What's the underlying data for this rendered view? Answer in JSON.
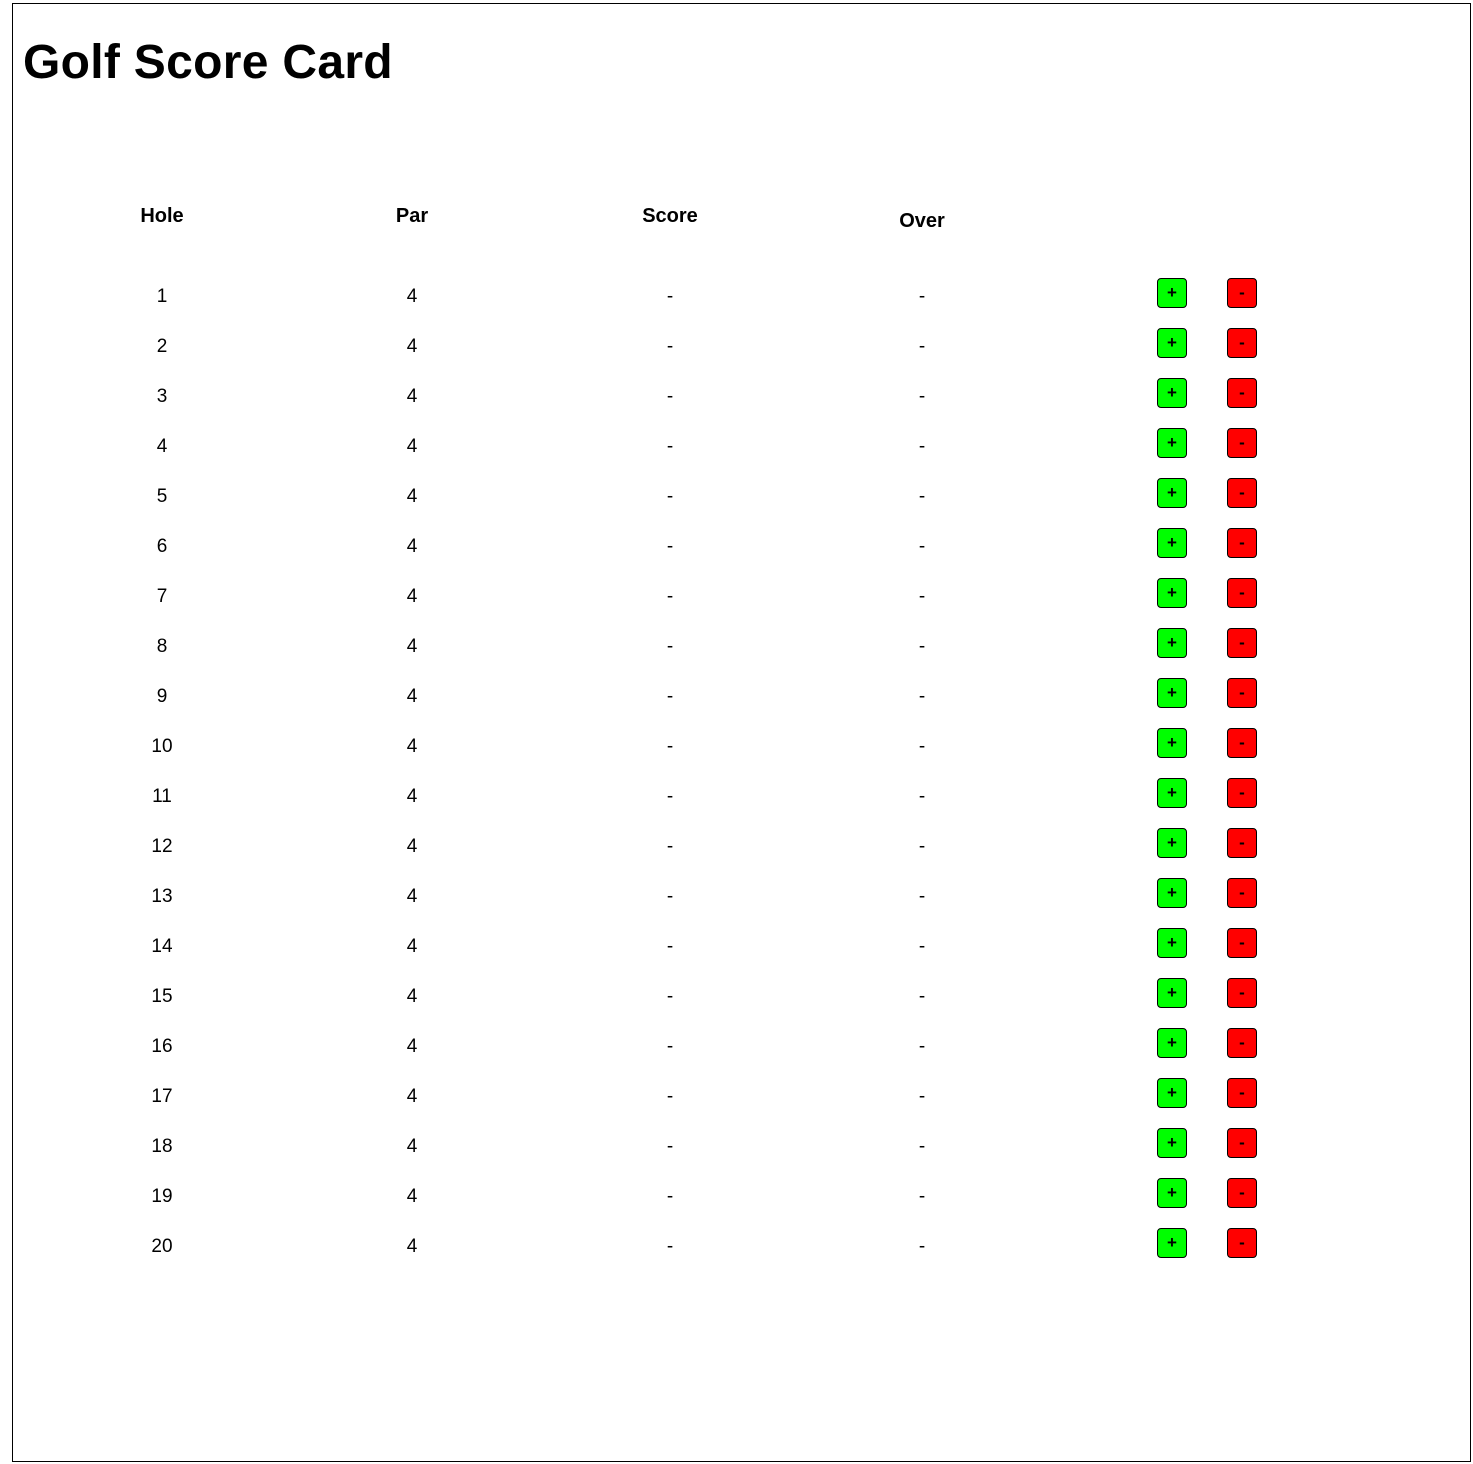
{
  "page": {
    "title": "Golf Score Card"
  },
  "table": {
    "headers": {
      "hole": "Hole",
      "par": "Par",
      "score": "Score",
      "over": "Over"
    },
    "rows": [
      {
        "hole": "1",
        "par": "4",
        "score": "-",
        "over": "-"
      },
      {
        "hole": "2",
        "par": "4",
        "score": "-",
        "over": "-"
      },
      {
        "hole": "3",
        "par": "4",
        "score": "-",
        "over": "-"
      },
      {
        "hole": "4",
        "par": "4",
        "score": "-",
        "over": "-"
      },
      {
        "hole": "5",
        "par": "4",
        "score": "-",
        "over": "-"
      },
      {
        "hole": "6",
        "par": "4",
        "score": "-",
        "over": "-"
      },
      {
        "hole": "7",
        "par": "4",
        "score": "-",
        "over": "-"
      },
      {
        "hole": "8",
        "par": "4",
        "score": "-",
        "over": "-"
      },
      {
        "hole": "9",
        "par": "4",
        "score": "-",
        "over": "-"
      },
      {
        "hole": "10",
        "par": "4",
        "score": "-",
        "over": "-"
      },
      {
        "hole": "11",
        "par": "4",
        "score": "-",
        "over": "-"
      },
      {
        "hole": "12",
        "par": "4",
        "score": "-",
        "over": "-"
      },
      {
        "hole": "13",
        "par": "4",
        "score": "-",
        "over": "-"
      },
      {
        "hole": "14",
        "par": "4",
        "score": "-",
        "over": "-"
      },
      {
        "hole": "15",
        "par": "4",
        "score": "-",
        "over": "-"
      },
      {
        "hole": "16",
        "par": "4",
        "score": "-",
        "over": "-"
      },
      {
        "hole": "17",
        "par": "4",
        "score": "-",
        "over": "-"
      },
      {
        "hole": "18",
        "par": "4",
        "score": "-",
        "over": "-"
      },
      {
        "hole": "19",
        "par": "4",
        "score": "-",
        "over": "-"
      },
      {
        "hole": "20",
        "par": "4",
        "score": "-",
        "over": "-"
      }
    ]
  },
  "buttons": {
    "increment_label": "+",
    "decrement_label": "-",
    "increment_color": "#00ff00",
    "decrement_color": "#ff0000"
  }
}
